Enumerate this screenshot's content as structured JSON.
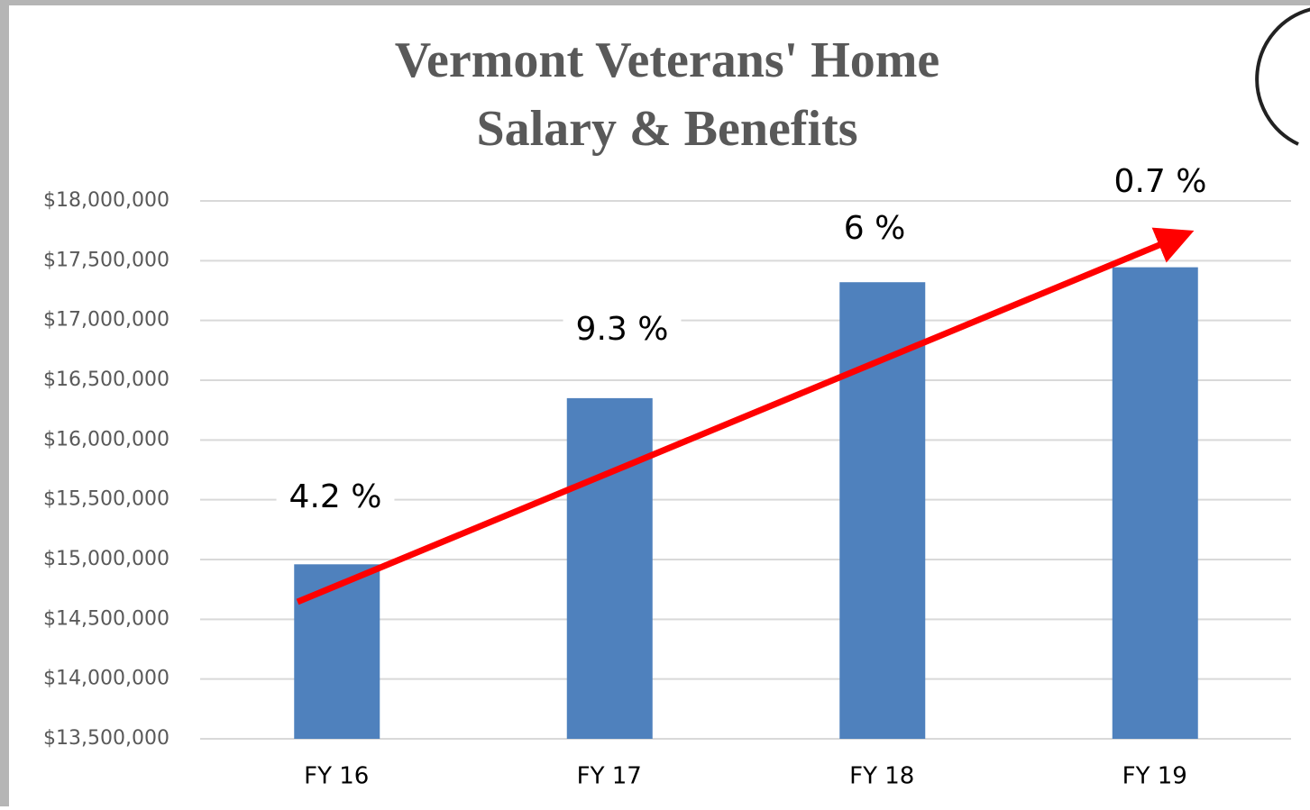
{
  "chart_data": {
    "type": "bar",
    "title": [
      "Vermont Veterans' Home",
      "Salary & Benefits"
    ],
    "categories": [
      "FY 16",
      "FY 17",
      "FY 18",
      "FY 19"
    ],
    "values": [
      14960000,
      16350000,
      17320000,
      17445000
    ],
    "annotations": [
      "4.2 %",
      "9.3 %",
      "6 %",
      "0.7 %"
    ],
    "color": "#4f81bd",
    "ylim": [
      13500000,
      18000000
    ],
    "yticks": [
      {
        "value": 13500000,
        "label": "$13,500,000"
      },
      {
        "value": 14000000,
        "label": "$14,000,000"
      },
      {
        "value": 14500000,
        "label": "$14,500,000"
      },
      {
        "value": 15000000,
        "label": "$15,000,000"
      },
      {
        "value": 15500000,
        "label": "$15,500,000"
      },
      {
        "value": 16000000,
        "label": "$16,000,000"
      },
      {
        "value": 16500000,
        "label": "$16,500,000"
      },
      {
        "value": 17000000,
        "label": "$17,000,000"
      },
      {
        "value": 17500000,
        "label": "$17,500,000"
      },
      {
        "value": 18000000,
        "label": "$18,000,000"
      }
    ],
    "grid": true
  }
}
